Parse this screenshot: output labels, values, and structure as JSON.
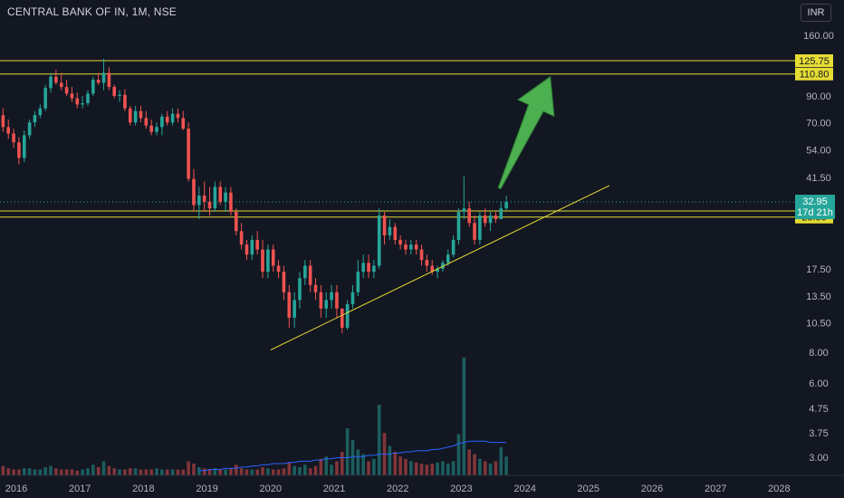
{
  "header": {
    "symbol_label": "CENTRAL BANK OF IN, 1M, NSE",
    "currency_button": "INR"
  },
  "colors": {
    "background": "#131722",
    "bull": "#26a69a",
    "bear": "#ef5350",
    "level": "#e5dc34",
    "trendline": "#e5dc34",
    "arrow": "#4caf50",
    "volume_ma": "#2962ff"
  },
  "chart_data": {
    "type": "candlestick",
    "interval": "1M",
    "y_scale": "log",
    "y_ticks": [
      "160.00",
      "90.00",
      "70.00",
      "54.00",
      "41.50",
      "17.50",
      "13.50",
      "10.50",
      "8.00",
      "6.00",
      "4.75",
      "3.75",
      "3.00"
    ],
    "x_ticks": [
      "2016",
      "2017",
      "2018",
      "2019",
      "2020",
      "2021",
      "2022",
      "2023",
      "2024",
      "2025",
      "2026",
      "2027",
      "2028"
    ],
    "levels": [
      {
        "label": "125.75",
        "value": 125.75
      },
      {
        "label": "110.80",
        "value": 110.8
      },
      {
        "label": "30.25",
        "value": 30.25
      },
      {
        "label": "28.55",
        "value": 28.55
      }
    ],
    "last_price": {
      "label": "32.95",
      "value": 32.95,
      "countdown": "17d 21h"
    },
    "trendline": {
      "start": {
        "t": 2020.0,
        "price": 8.1
      },
      "end": {
        "t": 2025.33,
        "price": 38.5
      }
    },
    "arrow": {
      "from": {
        "t": 2023.6,
        "price": 37.5
      },
      "to": {
        "t": 2024.4,
        "price": 108
      }
    },
    "candles": [
      [
        75,
        80,
        64,
        67
      ],
      [
        67,
        72,
        60,
        63
      ],
      [
        63,
        66,
        55,
        58
      ],
      [
        58,
        61,
        47,
        50
      ],
      [
        50,
        65,
        48,
        62
      ],
      [
        62,
        72,
        60,
        70
      ],
      [
        70,
        78,
        67,
        75
      ],
      [
        75,
        83,
        73,
        80
      ],
      [
        80,
        100,
        78,
        97
      ],
      [
        97,
        112,
        93,
        108
      ],
      [
        108,
        115,
        100,
        102
      ],
      [
        102,
        112,
        95,
        98
      ],
      [
        98,
        105,
        90,
        92
      ],
      [
        92,
        98,
        85,
        88
      ],
      [
        88,
        93,
        80,
        83
      ],
      [
        83,
        90,
        80,
        84
      ],
      [
        84,
        95,
        82,
        92
      ],
      [
        92,
        108,
        90,
        105
      ],
      [
        105,
        112,
        100,
        102
      ],
      [
        102,
        128,
        95,
        112
      ],
      [
        112,
        118,
        95,
        98
      ],
      [
        98,
        100,
        88,
        90
      ],
      [
        90,
        95,
        85,
        91
      ],
      [
        91,
        96,
        78,
        80
      ],
      [
        80,
        82,
        68,
        70
      ],
      [
        70,
        82,
        68,
        78
      ],
      [
        78,
        82,
        70,
        73
      ],
      [
        73,
        78,
        66,
        68
      ],
      [
        68,
        72,
        62,
        64
      ],
      [
        64,
        70,
        62,
        67
      ],
      [
        67,
        76,
        62,
        74
      ],
      [
        74,
        78,
        68,
        70
      ],
      [
        70,
        80,
        68,
        76
      ],
      [
        76,
        80,
        70,
        73
      ],
      [
        73,
        78,
        65,
        66
      ],
      [
        66,
        70,
        40,
        41
      ],
      [
        41,
        45,
        30,
        32
      ],
      [
        32,
        38,
        28,
        35
      ],
      [
        35,
        40,
        30,
        33
      ],
      [
        33,
        38,
        29,
        31
      ],
      [
        31,
        40,
        30,
        38
      ],
      [
        38,
        40,
        32,
        33
      ],
      [
        33,
        38,
        30,
        36
      ],
      [
        36,
        38,
        29,
        30
      ],
      [
        30,
        31,
        24,
        25
      ],
      [
        25,
        27,
        21,
        22
      ],
      [
        22,
        23,
        19,
        20
      ],
      [
        20,
        24,
        19,
        23
      ],
      [
        23,
        25,
        20,
        21
      ],
      [
        21,
        23,
        16,
        17
      ],
      [
        17,
        22,
        16,
        21
      ],
      [
        21,
        22,
        17,
        18
      ],
      [
        18,
        19,
        16,
        17
      ],
      [
        17,
        18,
        13,
        14
      ],
      [
        14,
        15,
        10,
        11
      ],
      [
        11,
        14,
        10,
        13
      ],
      [
        13,
        17,
        12,
        16
      ],
      [
        16,
        19,
        15,
        18
      ],
      [
        18,
        19,
        14,
        15
      ],
      [
        15,
        16,
        13,
        14
      ],
      [
        14,
        15,
        11,
        12
      ],
      [
        12,
        14,
        11,
        13
      ],
      [
        13,
        15,
        12,
        14
      ],
      [
        14,
        15,
        11,
        12
      ],
      [
        12,
        12,
        9.5,
        10
      ],
      [
        10,
        13,
        9.8,
        12.5
      ],
      [
        12.5,
        15,
        12,
        14
      ],
      [
        14,
        19,
        13.5,
        17
      ],
      [
        17,
        20,
        16,
        18.5
      ],
      [
        18.5,
        20,
        16,
        17
      ],
      [
        17,
        19,
        16,
        18
      ],
      [
        18,
        31,
        17.5,
        29
      ],
      [
        29,
        30,
        22,
        24
      ],
      [
        24,
        28,
        23,
        26
      ],
      [
        26,
        27,
        22,
        23
      ],
      [
        23,
        24,
        21,
        22
      ],
      [
        22,
        23,
        20,
        21
      ],
      [
        21,
        23,
        20,
        22
      ],
      [
        22,
        23,
        20,
        21
      ],
      [
        21,
        22,
        18,
        19
      ],
      [
        19,
        20,
        17,
        18
      ],
      [
        18,
        19,
        16.5,
        17
      ],
      [
        17,
        18,
        16,
        17.5
      ],
      [
        17.5,
        19,
        17,
        18.5
      ],
      [
        18.5,
        21,
        18,
        20
      ],
      [
        20,
        24,
        19.5,
        23
      ],
      [
        23,
        31,
        22,
        30
      ],
      [
        30,
        42,
        28,
        31
      ],
      [
        31,
        33,
        26,
        27
      ],
      [
        27,
        29,
        22,
        23
      ],
      [
        23,
        30,
        22,
        29
      ],
      [
        29,
        31,
        26,
        27
      ],
      [
        27,
        30,
        25,
        29
      ],
      [
        29,
        30,
        27,
        28
      ],
      [
        28,
        33,
        28,
        31
      ],
      [
        31,
        35,
        30.5,
        32.95
      ]
    ],
    "volume_max": 100,
    "volumes": [
      8,
      6,
      5,
      5,
      6,
      6,
      5,
      5,
      7,
      8,
      6,
      5,
      5,
      5,
      4,
      5,
      6,
      9,
      7,
      12,
      8,
      6,
      5,
      5,
      6,
      6,
      5,
      5,
      5,
      6,
      5,
      5,
      5,
      5,
      5,
      12,
      10,
      7,
      6,
      5,
      6,
      5,
      5,
      6,
      9,
      6,
      5,
      5,
      5,
      7,
      6,
      5,
      5,
      6,
      11,
      8,
      7,
      9,
      6,
      8,
      14,
      16,
      9,
      12,
      20,
      40,
      30,
      22,
      18,
      12,
      14,
      60,
      36,
      25,
      20,
      16,
      14,
      12,
      11,
      10,
      9,
      10,
      11,
      12,
      10,
      12,
      35,
      100,
      22,
      18,
      14,
      12,
      10,
      12,
      24,
      16
    ],
    "volume_ma": [
      4,
      4,
      5,
      5,
      5,
      6,
      6,
      6,
      7,
      7,
      8,
      8,
      9,
      9,
      10,
      10,
      10,
      11,
      11,
      12,
      12,
      12,
      13,
      13,
      14,
      14,
      15,
      15,
      15,
      16,
      16,
      16,
      17,
      17,
      18,
      18,
      18,
      19,
      19,
      20,
      20,
      21,
      21,
      21,
      22,
      22,
      23,
      24,
      25,
      27,
      28,
      29,
      29,
      29,
      29,
      28,
      28,
      28,
      28
    ]
  }
}
